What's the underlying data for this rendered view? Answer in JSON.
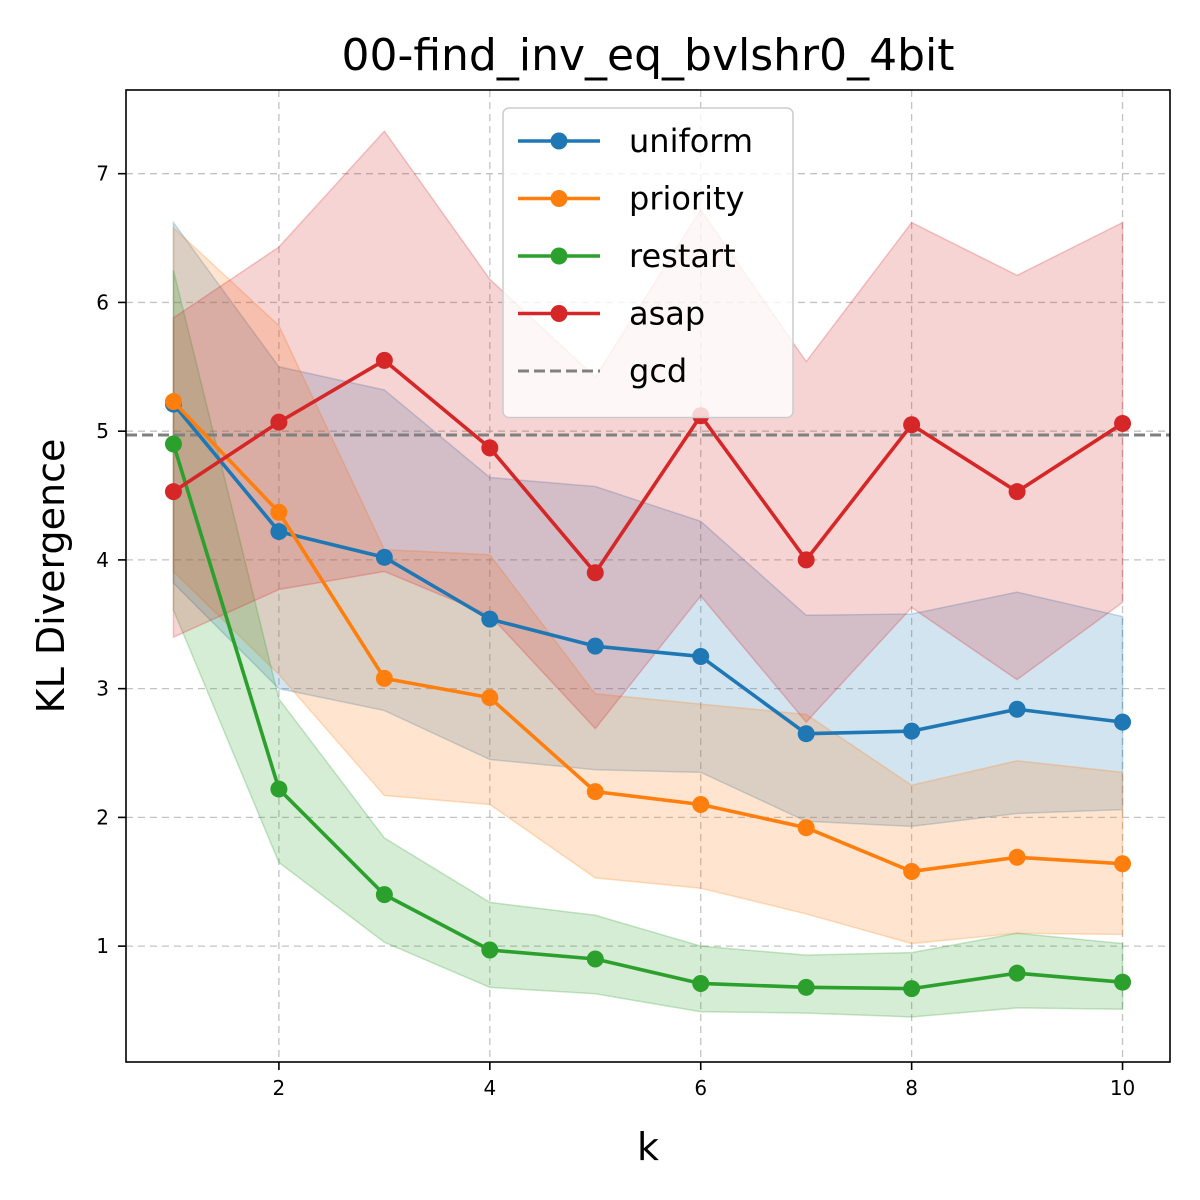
{
  "chart_data": {
    "type": "line",
    "title": "00-find_inv_eq_bvlshr0_4bit",
    "xlabel": "k",
    "ylabel": "KL Divergence",
    "xlim": [
      0.55,
      10.45
    ],
    "ylim": [
      0.1,
      7.65
    ],
    "xticks": [
      2,
      4,
      6,
      8,
      10
    ],
    "yticks": [
      1,
      2,
      3,
      4,
      5,
      6,
      7
    ],
    "grid": true,
    "legend_position": "top-center",
    "x": [
      1,
      2,
      3,
      4,
      5,
      6,
      7,
      8,
      9,
      10
    ],
    "series": [
      {
        "name": "uniform",
        "color": "#1f77b4",
        "values": [
          5.21,
          4.22,
          4.02,
          3.54,
          3.33,
          3.25,
          2.65,
          2.67,
          2.84,
          2.74
        ],
        "upper": [
          6.62,
          5.5,
          5.32,
          4.64,
          4.57,
          4.3,
          3.57,
          3.58,
          3.75,
          3.56
        ],
        "lower": [
          3.82,
          3.0,
          2.83,
          2.45,
          2.37,
          2.35,
          1.97,
          1.93,
          2.03,
          2.06
        ]
      },
      {
        "name": "priority",
        "color": "#ff7f0e",
        "values": [
          5.23,
          4.37,
          3.08,
          2.93,
          2.2,
          2.1,
          1.92,
          1.58,
          1.69,
          1.64
        ],
        "upper": [
          6.58,
          5.82,
          4.08,
          4.04,
          2.96,
          2.88,
          2.8,
          2.25,
          2.44,
          2.35
        ],
        "lower": [
          3.91,
          3.11,
          2.17,
          2.1,
          1.53,
          1.45,
          1.25,
          1.02,
          1.1,
          1.09
        ]
      },
      {
        "name": "restart",
        "color": "#2ca02c",
        "values": [
          4.9,
          2.22,
          1.4,
          0.97,
          0.9,
          0.71,
          0.68,
          0.67,
          0.79,
          0.72
        ],
        "upper": [
          6.25,
          2.92,
          1.84,
          1.34,
          1.24,
          1.0,
          0.93,
          0.95,
          1.1,
          1.02
        ],
        "lower": [
          3.61,
          1.65,
          1.03,
          0.68,
          0.63,
          0.49,
          0.48,
          0.45,
          0.52,
          0.51
        ]
      },
      {
        "name": "asap",
        "color": "#d62728",
        "values": [
          4.53,
          5.07,
          5.55,
          4.87,
          3.9,
          5.12,
          4.0,
          5.05,
          4.53,
          5.06
        ],
        "upper": [
          5.88,
          6.43,
          7.33,
          6.18,
          5.42,
          6.72,
          5.54,
          6.62,
          6.21,
          6.62
        ],
        "lower": [
          3.4,
          3.77,
          3.91,
          3.57,
          2.69,
          3.72,
          2.74,
          3.63,
          3.07,
          3.67
        ]
      }
    ],
    "reference_lines": [
      {
        "name": "gcd",
        "color": "#808080",
        "y": 4.97,
        "style": "dashed"
      }
    ]
  }
}
